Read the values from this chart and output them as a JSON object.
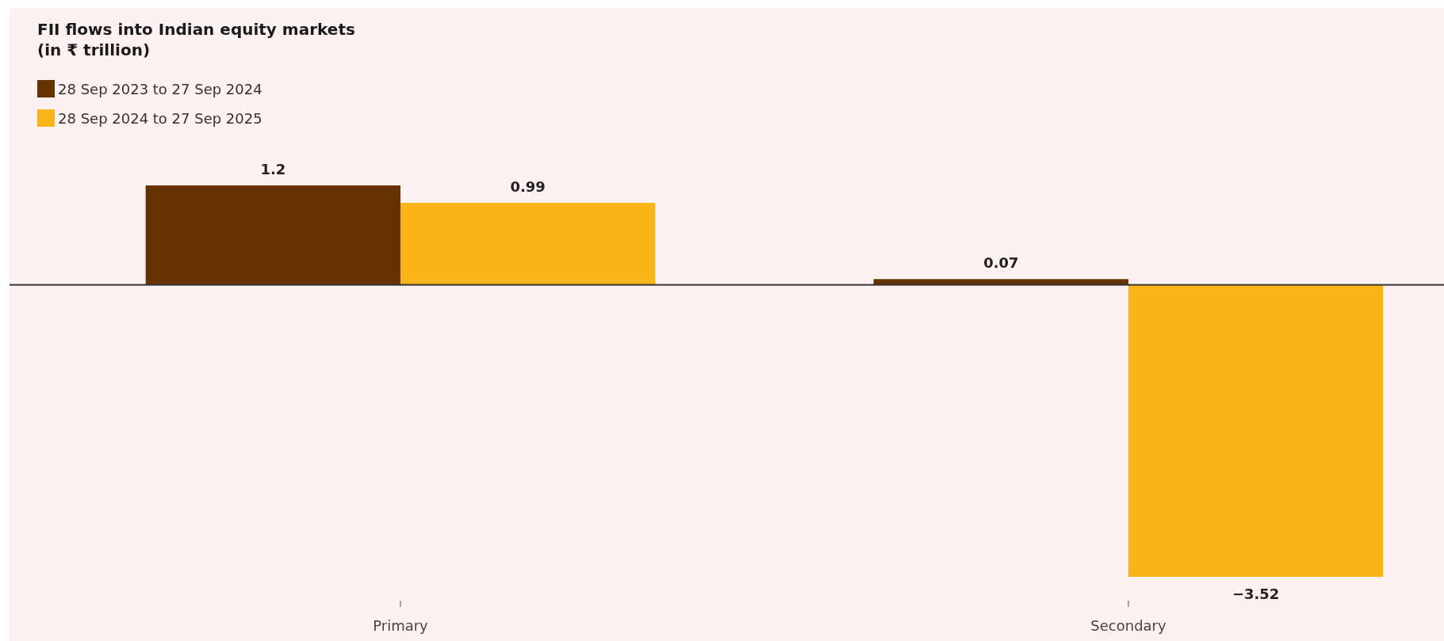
{
  "chart_data": {
    "type": "bar",
    "title": "FII flows into Indian equity markets",
    "subtitle": "(in ₹ trillion)",
    "categories": [
      "Primary",
      "Secondary"
    ],
    "series": [
      {
        "name": "28 Sep 2023 to 27 Sep 2024",
        "color": "#663300",
        "values": [
          1.2,
          0.07
        ]
      },
      {
        "name": "28 Sep 2024 to 27 Sep 2025",
        "color": "#f9b418",
        "values": [
          0.99,
          -3.52
        ]
      }
    ],
    "data_labels": true,
    "legend": "top left",
    "grid": false
  }
}
